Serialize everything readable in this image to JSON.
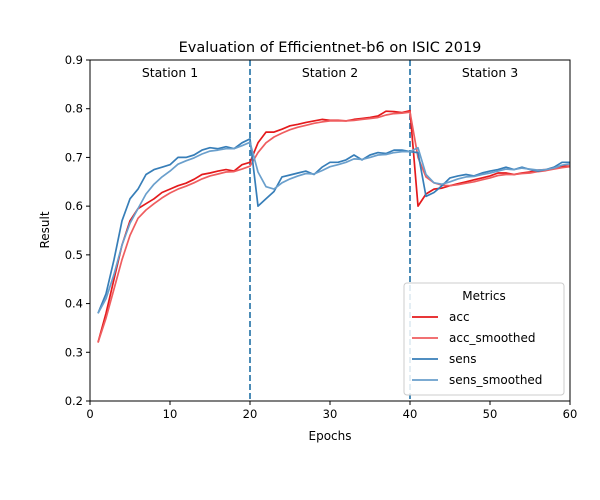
{
  "chart_data": {
    "type": "line",
    "title": "Evaluation of Efficientnet-b6 on ISIC 2019",
    "xlabel": "Epochs",
    "ylabel": "Result",
    "xlim": [
      0,
      60
    ],
    "ylim": [
      0.2,
      0.9
    ],
    "xticks": [
      0,
      10,
      20,
      30,
      40,
      50,
      60
    ],
    "yticks": [
      0.2,
      0.3,
      0.4,
      0.5,
      0.6,
      0.7,
      0.8,
      0.9
    ],
    "grid": false,
    "station_lines": [
      20,
      40
    ],
    "stations": [
      {
        "label": "Station 1",
        "x": 10
      },
      {
        "label": "Station 2",
        "x": 30
      },
      {
        "label": "Station 3",
        "x": 50
      }
    ],
    "legend": {
      "title": "Metrics",
      "position": "lower-right"
    },
    "x": [
      1,
      2,
      3,
      4,
      5,
      6,
      7,
      8,
      9,
      10,
      11,
      12,
      13,
      14,
      15,
      16,
      17,
      18,
      19,
      20,
      21,
      22,
      23,
      24,
      25,
      26,
      27,
      28,
      29,
      30,
      31,
      32,
      33,
      34,
      35,
      36,
      37,
      38,
      39,
      40,
      41,
      42,
      43,
      44,
      45,
      46,
      47,
      48,
      49,
      50,
      51,
      52,
      53,
      54,
      55,
      56,
      57,
      58,
      59,
      60
    ],
    "series": [
      {
        "name": "acc",
        "color": "#e41a1c",
        "values": [
          0.32,
          0.38,
          0.45,
          0.52,
          0.57,
          0.595,
          0.605,
          0.615,
          0.628,
          0.635,
          0.642,
          0.647,
          0.655,
          0.665,
          0.668,
          0.672,
          0.675,
          0.672,
          0.685,
          0.69,
          0.73,
          0.752,
          0.752,
          0.758,
          0.765,
          0.768,
          0.772,
          0.775,
          0.778,
          0.776,
          0.776,
          0.775,
          0.778,
          0.78,
          0.782,
          0.785,
          0.795,
          0.794,
          0.792,
          0.796,
          0.6,
          0.625,
          0.635,
          0.637,
          0.642,
          0.646,
          0.65,
          0.654,
          0.658,
          0.662,
          0.668,
          0.668,
          0.665,
          0.668,
          0.67,
          0.674,
          0.675,
          0.678,
          0.682,
          0.682
        ]
      },
      {
        "name": "acc_smoothed",
        "color": "#ef5d5f",
        "values": [
          0.32,
          0.37,
          0.43,
          0.49,
          0.54,
          0.575,
          0.592,
          0.605,
          0.617,
          0.627,
          0.635,
          0.641,
          0.648,
          0.656,
          0.662,
          0.666,
          0.67,
          0.671,
          0.676,
          0.682,
          0.71,
          0.73,
          0.742,
          0.75,
          0.757,
          0.762,
          0.766,
          0.77,
          0.773,
          0.775,
          0.775,
          0.775,
          0.776,
          0.778,
          0.78,
          0.782,
          0.787,
          0.79,
          0.791,
          0.793,
          0.7,
          0.66,
          0.648,
          0.643,
          0.642,
          0.644,
          0.647,
          0.65,
          0.654,
          0.658,
          0.663,
          0.665,
          0.665,
          0.667,
          0.668,
          0.671,
          0.673,
          0.676,
          0.679,
          0.681
        ]
      },
      {
        "name": "sens",
        "color": "#377eb8",
        "values": [
          0.38,
          0.42,
          0.49,
          0.57,
          0.615,
          0.635,
          0.665,
          0.675,
          0.68,
          0.685,
          0.7,
          0.7,
          0.705,
          0.715,
          0.72,
          0.718,
          0.722,
          0.718,
          0.73,
          0.738,
          0.6,
          0.615,
          0.63,
          0.66,
          0.664,
          0.668,
          0.672,
          0.665,
          0.68,
          0.69,
          0.69,
          0.695,
          0.705,
          0.695,
          0.705,
          0.71,
          0.708,
          0.715,
          0.715,
          0.712,
          0.71,
          0.62,
          0.628,
          0.642,
          0.658,
          0.662,
          0.665,
          0.662,
          0.668,
          0.672,
          0.675,
          0.68,
          0.675,
          0.68,
          0.675,
          0.672,
          0.675,
          0.68,
          0.69,
          0.69
        ]
      },
      {
        "name": "sens_smoothed",
        "color": "#6a9fcc",
        "values": [
          0.38,
          0.41,
          0.46,
          0.52,
          0.565,
          0.595,
          0.625,
          0.645,
          0.66,
          0.672,
          0.686,
          0.693,
          0.699,
          0.707,
          0.713,
          0.715,
          0.718,
          0.718,
          0.724,
          0.731,
          0.67,
          0.64,
          0.635,
          0.648,
          0.656,
          0.662,
          0.667,
          0.666,
          0.673,
          0.681,
          0.685,
          0.69,
          0.697,
          0.696,
          0.7,
          0.705,
          0.706,
          0.71,
          0.712,
          0.712,
          0.72,
          0.665,
          0.648,
          0.645,
          0.65,
          0.656,
          0.66,
          0.661,
          0.665,
          0.668,
          0.672,
          0.676,
          0.675,
          0.678,
          0.676,
          0.674,
          0.675,
          0.678,
          0.684,
          0.687
        ]
      }
    ]
  }
}
